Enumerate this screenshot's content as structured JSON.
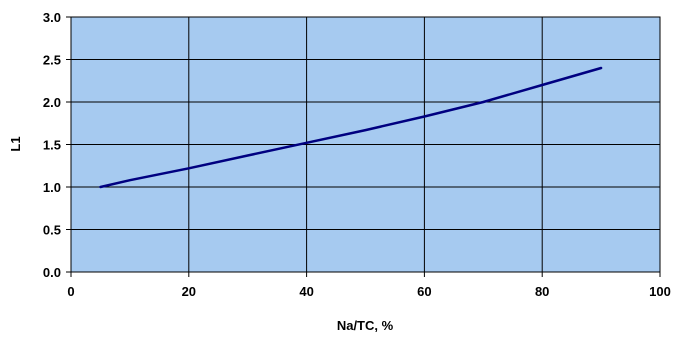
{
  "chart_data": {
    "type": "line",
    "title": "",
    "xlabel": "Na/TC, %",
    "ylabel": "L1",
    "xlim": [
      0,
      100
    ],
    "ylim": [
      0,
      3
    ],
    "x_ticks": [
      "0",
      "20",
      "40",
      "60",
      "80",
      "100"
    ],
    "y_ticks": [
      "0.0",
      "0.5",
      "1.0",
      "1.5",
      "2.0",
      "2.5",
      "3.0"
    ],
    "grid": true,
    "legend": "none",
    "colors": {
      "plot_area": "#a6caf0",
      "line": "#000080",
      "grid": "#000000"
    },
    "series": [
      {
        "x": [
          5,
          10,
          20,
          30,
          40,
          50,
          60,
          70,
          80,
          90
        ],
        "y": [
          1.0,
          1.08,
          1.22,
          1.37,
          1.52,
          1.67,
          1.83,
          2.0,
          2.2,
          2.4
        ]
      }
    ]
  }
}
